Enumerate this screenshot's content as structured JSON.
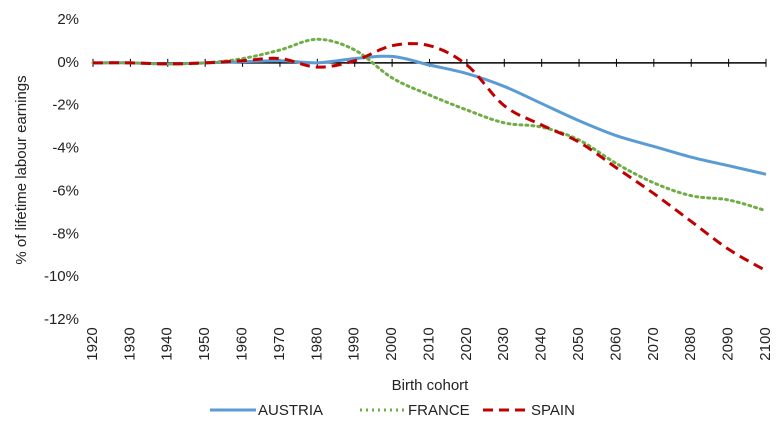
{
  "chart_data": {
    "type": "line",
    "y_axis_label": "% of lifetime labour earnings",
    "x_axis_label": "Birth cohort",
    "x": [
      1920,
      1930,
      1940,
      1950,
      1960,
      1970,
      1980,
      1990,
      2000,
      2010,
      2020,
      2030,
      2040,
      2050,
      2060,
      2070,
      2080,
      2090,
      2100
    ],
    "series": [
      {
        "name": "AUSTRIA",
        "color": "#5b9bd5",
        "dash": "solid",
        "values": [
          0,
          0,
          -0.05,
          0,
          0.05,
          0.1,
          0,
          0.2,
          0.3,
          -0.1,
          -0.5,
          -1.1,
          -1.9,
          -2.7,
          -3.4,
          -3.9,
          -4.4,
          -4.8,
          -5.2
        ]
      },
      {
        "name": "FRANCE",
        "color": "#70ad47",
        "dash": "dotted",
        "values": [
          0,
          0,
          -0.05,
          0,
          0.2,
          0.6,
          1.1,
          0.6,
          -0.7,
          -1.5,
          -2.2,
          -2.8,
          -3.0,
          -3.6,
          -4.7,
          -5.6,
          -6.2,
          -6.4,
          -6.9
        ]
      },
      {
        "name": "SPAIN",
        "color": "#c00000",
        "dash": "dashed",
        "values": [
          0,
          0,
          -0.05,
          0,
          0.1,
          0.2,
          -0.2,
          0.1,
          0.8,
          0.8,
          -0.1,
          -2.0,
          -2.9,
          -3.7,
          -4.9,
          -6.1,
          -7.4,
          -8.7,
          -9.7
        ]
      }
    ],
    "xlim": [
      1920,
      2100
    ],
    "xticks": [
      1920,
      1930,
      1940,
      1950,
      1960,
      1970,
      1980,
      1990,
      2000,
      2010,
      2020,
      2030,
      2040,
      2050,
      2060,
      2070,
      2080,
      2090,
      2100
    ],
    "ylim": [
      -12,
      2
    ],
    "yticks": [
      {
        "value": 2,
        "label": "2%"
      },
      {
        "value": 0,
        "label": "0%"
      },
      {
        "value": -2,
        "label": "-2%"
      },
      {
        "value": -4,
        "label": "-4%"
      },
      {
        "value": -6,
        "label": "-6%"
      },
      {
        "value": -8,
        "label": "-8%"
      },
      {
        "value": -10,
        "label": "-10%"
      },
      {
        "value": -12,
        "label": "-12%"
      }
    ],
    "legend": "bottom"
  }
}
